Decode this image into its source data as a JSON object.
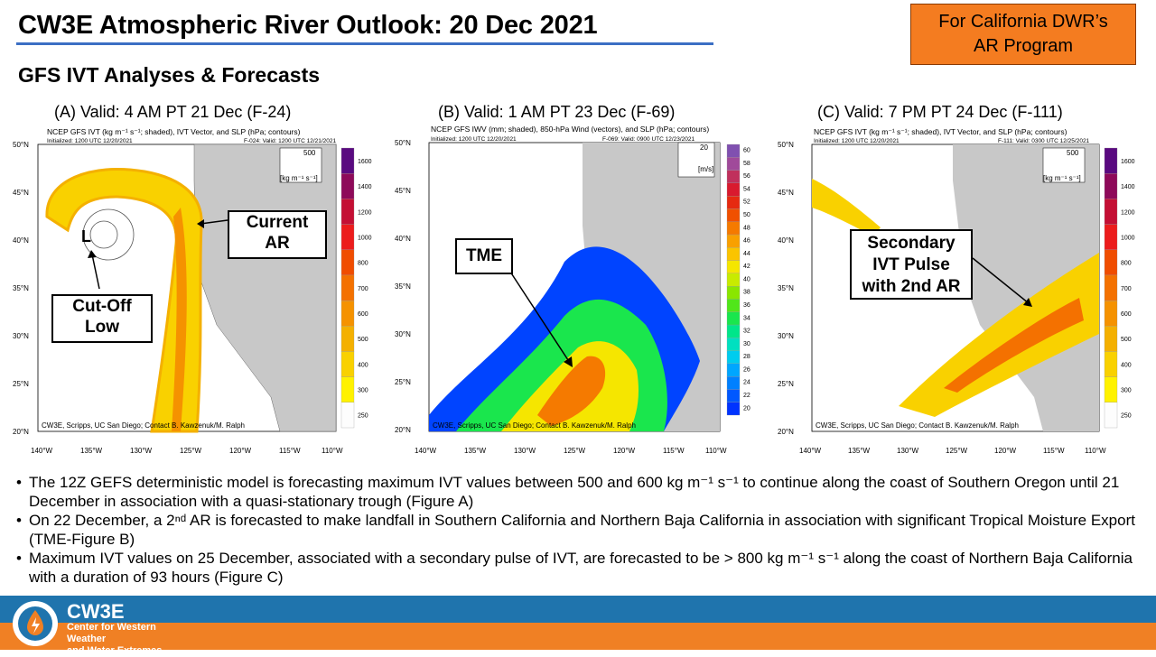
{
  "header": {
    "title": "CW3E Atmospheric River Outlook: 20 Dec 2021",
    "dwr_line1": "For California DWR’s",
    "dwr_line2": "AR Program",
    "subtitle": "GFS IVT Analyses & Forecasts"
  },
  "panels": [
    {
      "title": "(A) Valid:  4 AM  PT  21  Dec  (F-24)",
      "caption1": "NCEP GFS IVT (kg m⁻¹ s⁻¹; shaded), IVT Vector, and SLP (hPa; contours)",
      "init": "Initialized: 1200 UTC 12/20/2021",
      "valid": "F-024: Valid: 1200 UTC 12/21/2021",
      "vector_ref": "500",
      "unit": "[kg m⁻¹ s⁻¹]",
      "credit": "CW3E, Scripps, UC San Diego; Contact B. Kawzenuk/M. Ralph",
      "colorbar_ticks": [
        "1600",
        "1400",
        "1200",
        "1000",
        "800",
        "700",
        "600",
        "500",
        "400",
        "300",
        "250"
      ],
      "labels": [
        "Current AR",
        "Cut-Off Low",
        "L"
      ]
    },
    {
      "title": "(B) Valid:  1 AM  PT  23  Dec  (F-69)",
      "caption1": "NCEP GFS IWV (mm; shaded), 850-hPa Wind (vectors), and SLP (hPa; contours)",
      "init": "Initialized: 1200 UTC 12/20/2021",
      "valid": "F-069: Valid: 0900 UTC 12/23/2021",
      "vector_ref": "20",
      "unit": "[m/s]",
      "credit": "CW3E, Scripps, UC San Diego; Contact B. Kawzenuk/M. Ralph",
      "colorbar_ticks": [
        "60",
        "58",
        "56",
        "54",
        "52",
        "50",
        "48",
        "46",
        "44",
        "42",
        "40",
        "38",
        "36",
        "34",
        "32",
        "30",
        "28",
        "26",
        "24",
        "22",
        "20"
      ],
      "labels": [
        "TME"
      ]
    },
    {
      "title": "(C) Valid:  7 PM  PT  24  Dec  (F-111)",
      "caption1": "NCEP GFS IVT (kg m⁻¹ s⁻¹; shaded), IVT Vector, and SLP (hPa; contours)",
      "init": "Initialized: 1200 UTC 12/20/2021",
      "valid": "F-111: Valid: 0300 UTC 12/25/2021",
      "vector_ref": "500",
      "unit": "[kg m⁻¹ s⁻¹]",
      "credit": "CW3E, Scripps, UC San Diego; Contact B. Kawzenuk/M. Ralph",
      "colorbar_ticks": [
        "1600",
        "1400",
        "1200",
        "1000",
        "800",
        "700",
        "600",
        "500",
        "400",
        "300",
        "250"
      ],
      "labels": [
        "Secondary",
        "IVT Pulse",
        "with 2nd AR"
      ]
    }
  ],
  "axes": {
    "lat": [
      "50°N",
      "45°N",
      "40°N",
      "35°N",
      "30°N",
      "25°N",
      "20°N"
    ],
    "lon": [
      "140°W",
      "135°W",
      "130°W",
      "125°W",
      "120°W",
      "115°W",
      "110°W"
    ]
  },
  "colors": {
    "ivt": [
      "#fdfdfd",
      "#fff200",
      "#f9d100",
      "#f4b000",
      "#f59200",
      "#f47100",
      "#f04d00",
      "#ec1c1c",
      "#c40f34",
      "#8e0a5a",
      "#5a0a80"
    ],
    "iwv": [
      "#0033ff",
      "#0058ff",
      "#0080ff",
      "#00a6ff",
      "#00ccee",
      "#00e0c0",
      "#00e68a",
      "#1ae64d",
      "#50e61a",
      "#8ae600",
      "#c8eb00",
      "#f5e600",
      "#fbc400",
      "#f9a000",
      "#f57a00",
      "#f05000",
      "#e62a10",
      "#d91a2e",
      "#c0305c",
      "#a04a9a",
      "#8050b0"
    ]
  },
  "bullets": [
    "The 12Z GEFS deterministic  model is forecasting maximum  IVT values  between  500 and 600 kg m⁻¹ s⁻¹ to continue along the coast of Southern Oregon until 21 December in association with a quasi-stationary  trough (Figure A)",
    "On  22  December, a  2ⁿᵈ AR is forecasted to make landfall in Southern California and Northern Baja California in association with significant Tropical Moisture Export (TME-Figure  B)",
    "Maximum  IVT values  on 25 December, associated with a secondary pulse of IVT, are forecasted to be > 800 kg m⁻¹ s⁻¹ along the coast of Northern  Baja  California  with a duration  of 93 hours (Figure C)"
  ],
  "footer": {
    "brand": "CW3E",
    "line1": "Center for Western Weather",
    "line2": "and Water Extremes"
  }
}
